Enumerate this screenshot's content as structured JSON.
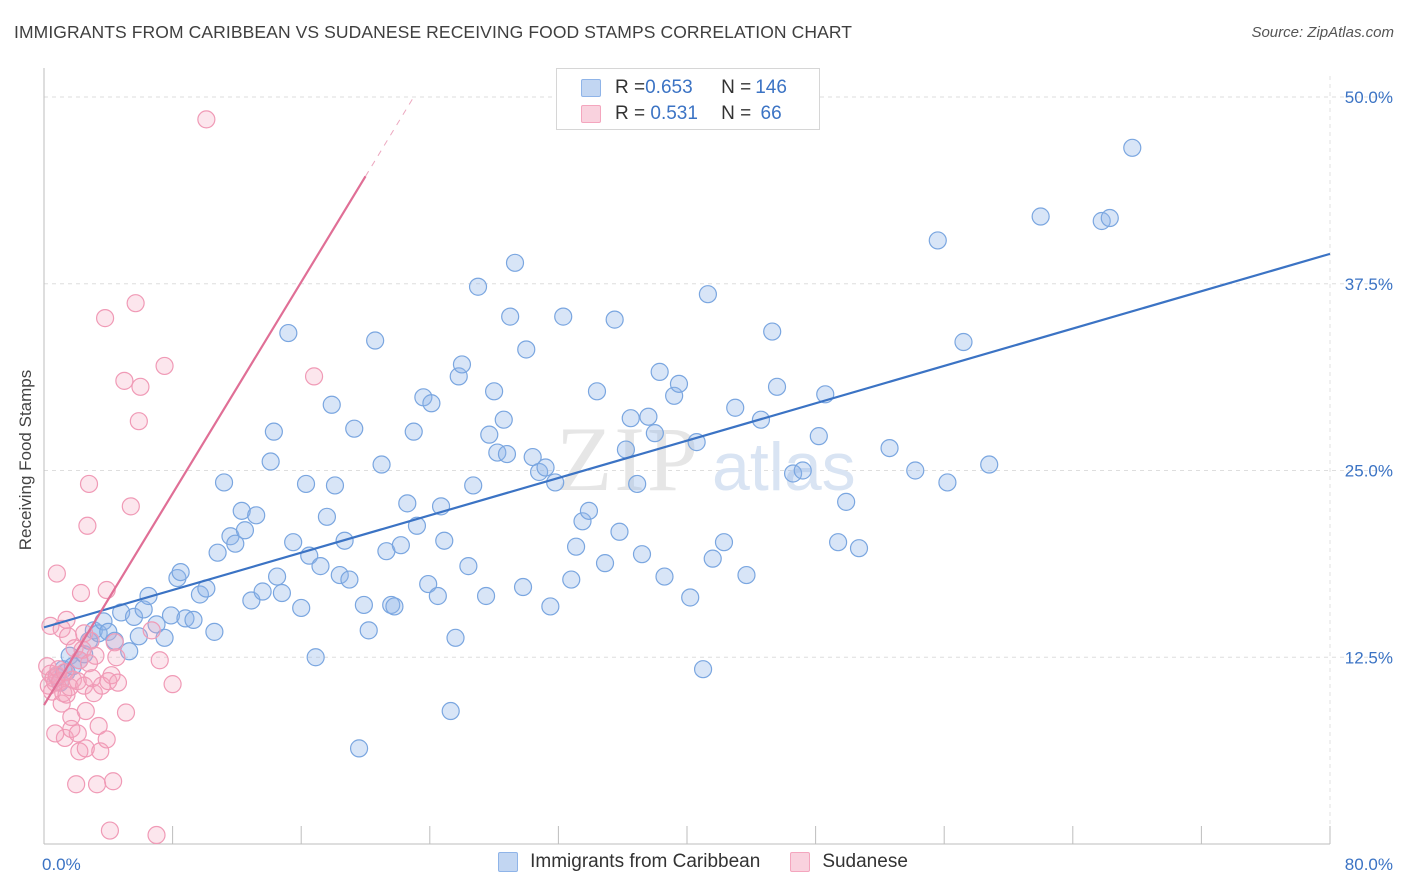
{
  "title": "IMMIGRANTS FROM CARIBBEAN VS SUDANESE RECEIVING FOOD STAMPS CORRELATION CHART",
  "source": "Source: ZipAtlas.com",
  "watermark": {
    "zip": "ZIP",
    "atlas": "atlas"
  },
  "legend": {
    "rows": [
      {
        "r_label": "R = ",
        "r_value": "0.653",
        "n_label": "N = ",
        "n_value": "146",
        "color": "#8fb4e8"
      },
      {
        "r_label": "R = ",
        "r_value": " 0.531",
        "n_label": "N = ",
        "n_value": " 66",
        "color": "#f4a6be"
      }
    ]
  },
  "bottom_legend": [
    {
      "label": "Immigrants from Caribbean",
      "color": "#8fb4e8"
    },
    {
      "label": "Sudanese",
      "color": "#f4a6be"
    }
  ],
  "chart_data": {
    "type": "scatter",
    "title": "IMMIGRANTS FROM CARIBBEAN VS SUDANESE RECEIVING FOOD STAMPS CORRELATION CHART",
    "xlabel": "",
    "ylabel": "Receiving Food Stamps",
    "xlim": [
      0,
      80
    ],
    "ylim": [
      0,
      50
    ],
    "x_tick_labels": [
      {
        "value": 0,
        "label": "0.0%"
      },
      {
        "value": 80,
        "label": "80.0%"
      }
    ],
    "y_tick_labels": [
      {
        "value": 12.5,
        "label": "12.5%"
      },
      {
        "value": 25,
        "label": "25.0%"
      },
      {
        "value": 37.5,
        "label": "37.5%"
      },
      {
        "value": 50,
        "label": "50.0%"
      }
    ],
    "grid": true,
    "legend_position": "top-center",
    "series": [
      {
        "name": "Immigrants from Caribbean",
        "color": "#8fb4e8",
        "line_color": "#3b73c4",
        "trend": {
          "x": [
            0,
            80
          ],
          "y": [
            14.5,
            39.5
          ]
        },
        "points": [
          [
            0.8,
            11.2
          ],
          [
            1.0,
            10.8
          ],
          [
            1.2,
            11.7
          ],
          [
            1.4,
            11.5
          ],
          [
            1.6,
            12.6
          ],
          [
            1.8,
            11.9
          ],
          [
            2.2,
            12.3
          ],
          [
            2.5,
            12.7
          ],
          [
            2.8,
            13.6
          ],
          [
            3.1,
            14.3
          ],
          [
            3.4,
            14.1
          ],
          [
            3.7,
            14.9
          ],
          [
            4.0,
            14.2
          ],
          [
            4.4,
            13.6
          ],
          [
            4.8,
            15.5
          ],
          [
            5.3,
            12.9
          ],
          [
            5.6,
            15.2
          ],
          [
            5.9,
            13.9
          ],
          [
            6.2,
            15.7
          ],
          [
            6.5,
            16.6
          ],
          [
            7.0,
            14.7
          ],
          [
            7.5,
            13.8
          ],
          [
            7.9,
            15.3
          ],
          [
            8.3,
            17.8
          ],
          [
            8.5,
            18.2
          ],
          [
            8.8,
            15.1
          ],
          [
            9.3,
            15.0
          ],
          [
            9.7,
            16.7
          ],
          [
            10.1,
            17.1
          ],
          [
            10.6,
            14.2
          ],
          [
            10.8,
            19.5
          ],
          [
            11.2,
            24.2
          ],
          [
            11.6,
            20.6
          ],
          [
            11.9,
            20.1
          ],
          [
            12.3,
            22.3
          ],
          [
            12.5,
            21.0
          ],
          [
            12.9,
            16.3
          ],
          [
            13.2,
            22.0
          ],
          [
            13.6,
            16.9
          ],
          [
            14.1,
            25.6
          ],
          [
            14.3,
            27.6
          ],
          [
            14.5,
            17.9
          ],
          [
            14.8,
            16.8
          ],
          [
            15.2,
            34.2
          ],
          [
            15.5,
            20.2
          ],
          [
            16.0,
            15.8
          ],
          [
            16.3,
            24.1
          ],
          [
            16.5,
            19.3
          ],
          [
            16.9,
            12.5
          ],
          [
            17.2,
            18.6
          ],
          [
            17.6,
            21.9
          ],
          [
            17.9,
            29.4
          ],
          [
            18.1,
            24.0
          ],
          [
            18.4,
            18.0
          ],
          [
            18.7,
            20.3
          ],
          [
            19.0,
            17.7
          ],
          [
            19.3,
            27.8
          ],
          [
            19.6,
            6.4
          ],
          [
            19.9,
            16.0
          ],
          [
            20.2,
            14.3
          ],
          [
            20.6,
            33.7
          ],
          [
            21.0,
            25.4
          ],
          [
            21.3,
            19.6
          ],
          [
            21.6,
            16.0
          ],
          [
            21.8,
            15.9
          ],
          [
            22.2,
            20.0
          ],
          [
            22.6,
            22.8
          ],
          [
            23.0,
            27.6
          ],
          [
            23.2,
            21.3
          ],
          [
            23.6,
            29.9
          ],
          [
            23.9,
            17.4
          ],
          [
            24.1,
            29.5
          ],
          [
            24.5,
            16.6
          ],
          [
            24.7,
            22.6
          ],
          [
            24.9,
            20.3
          ],
          [
            25.3,
            8.9
          ],
          [
            25.6,
            13.8
          ],
          [
            25.8,
            31.3
          ],
          [
            26.0,
            32.1
          ],
          [
            26.4,
            18.6
          ],
          [
            26.7,
            24.0
          ],
          [
            27.0,
            37.3
          ],
          [
            27.5,
            16.6
          ],
          [
            27.7,
            27.4
          ],
          [
            28.0,
            30.3
          ],
          [
            28.2,
            26.2
          ],
          [
            28.6,
            28.4
          ],
          [
            28.8,
            26.1
          ],
          [
            29.0,
            35.3
          ],
          [
            29.3,
            38.9
          ],
          [
            29.8,
            17.2
          ],
          [
            30.0,
            33.1
          ],
          [
            30.4,
            25.9
          ],
          [
            30.8,
            24.9
          ],
          [
            31.2,
            25.2
          ],
          [
            31.5,
            15.9
          ],
          [
            31.8,
            24.2
          ],
          [
            32.3,
            35.3
          ],
          [
            32.8,
            17.7
          ],
          [
            33.1,
            19.9
          ],
          [
            33.5,
            21.6
          ],
          [
            33.9,
            22.3
          ],
          [
            34.4,
            30.3
          ],
          [
            34.9,
            18.8
          ],
          [
            35.5,
            35.1
          ],
          [
            35.8,
            20.9
          ],
          [
            36.2,
            26.4
          ],
          [
            36.5,
            28.5
          ],
          [
            36.9,
            24.1
          ],
          [
            37.2,
            19.4
          ],
          [
            37.6,
            28.6
          ],
          [
            38.0,
            27.5
          ],
          [
            38.3,
            31.6
          ],
          [
            38.6,
            17.9
          ],
          [
            39.2,
            30.0
          ],
          [
            39.5,
            30.8
          ],
          [
            40.2,
            16.5
          ],
          [
            40.6,
            26.9
          ],
          [
            41.0,
            11.7
          ],
          [
            41.3,
            36.8
          ],
          [
            41.6,
            19.1
          ],
          [
            42.3,
            20.2
          ],
          [
            43.0,
            29.2
          ],
          [
            43.7,
            18.0
          ],
          [
            44.6,
            28.4
          ],
          [
            45.3,
            34.3
          ],
          [
            45.6,
            30.6
          ],
          [
            46.6,
            24.8
          ],
          [
            47.2,
            25.0
          ],
          [
            48.2,
            27.3
          ],
          [
            48.6,
            30.1
          ],
          [
            49.4,
            20.2
          ],
          [
            49.9,
            22.9
          ],
          [
            50.7,
            19.8
          ],
          [
            52.6,
            26.5
          ],
          [
            54.2,
            25.0
          ],
          [
            55.6,
            40.4
          ],
          [
            56.2,
            24.2
          ],
          [
            57.2,
            33.6
          ],
          [
            58.8,
            25.4
          ],
          [
            62.0,
            42.0
          ],
          [
            65.8,
            41.7
          ],
          [
            66.3,
            41.9
          ],
          [
            67.7,
            46.6
          ]
        ]
      },
      {
        "name": "Sudanese",
        "color": "#f4a6be",
        "line_color": "#e06f96",
        "trend": {
          "x": [
            0,
            23
          ],
          "y": [
            9.3,
            50
          ]
        },
        "trend_solid_until_x": 20,
        "points": [
          [
            0.2,
            11.9
          ],
          [
            0.3,
            10.6
          ],
          [
            0.4,
            11.4
          ],
          [
            0.4,
            14.6
          ],
          [
            0.5,
            10.2
          ],
          [
            0.6,
            11.1
          ],
          [
            0.7,
            10.8
          ],
          [
            0.7,
            7.4
          ],
          [
            0.8,
            18.1
          ],
          [
            0.8,
            11.3
          ],
          [
            0.9,
            11.7
          ],
          [
            1.0,
            10.9
          ],
          [
            1.1,
            14.4
          ],
          [
            1.1,
            9.4
          ],
          [
            1.2,
            10.1
          ],
          [
            1.3,
            11.5
          ],
          [
            1.3,
            7.1
          ],
          [
            1.4,
            15.0
          ],
          [
            1.4,
            10.0
          ],
          [
            1.5,
            13.9
          ],
          [
            1.6,
            10.5
          ],
          [
            1.7,
            8.5
          ],
          [
            1.7,
            7.7
          ],
          [
            1.8,
            11.0
          ],
          [
            1.9,
            13.1
          ],
          [
            2.0,
            4.0
          ],
          [
            2.1,
            7.4
          ],
          [
            2.1,
            10.9
          ],
          [
            2.2,
            12.3
          ],
          [
            2.2,
            6.2
          ],
          [
            2.3,
            16.8
          ],
          [
            2.4,
            13.0
          ],
          [
            2.5,
            10.6
          ],
          [
            2.5,
            14.1
          ],
          [
            2.6,
            8.9
          ],
          [
            2.6,
            6.4
          ],
          [
            2.7,
            21.3
          ],
          [
            2.8,
            12.1
          ],
          [
            2.8,
            24.1
          ],
          [
            2.9,
            13.6
          ],
          [
            3.0,
            11.1
          ],
          [
            3.1,
            10.1
          ],
          [
            3.2,
            12.6
          ],
          [
            3.3,
            4.0
          ],
          [
            3.4,
            7.9
          ],
          [
            3.5,
            6.2
          ],
          [
            3.6,
            10.6
          ],
          [
            3.8,
            35.2
          ],
          [
            3.9,
            17.0
          ],
          [
            3.9,
            7.0
          ],
          [
            4.0,
            10.9
          ],
          [
            4.1,
            0.9
          ],
          [
            4.2,
            11.3
          ],
          [
            4.3,
            4.2
          ],
          [
            4.4,
            13.5
          ],
          [
            4.5,
            12.5
          ],
          [
            4.6,
            10.8
          ],
          [
            5.0,
            31.0
          ],
          [
            5.1,
            8.8
          ],
          [
            5.4,
            22.6
          ],
          [
            5.7,
            36.2
          ],
          [
            5.9,
            28.3
          ],
          [
            6.0,
            30.6
          ],
          [
            6.7,
            14.3
          ],
          [
            7.0,
            0.6
          ],
          [
            7.2,
            12.3
          ],
          [
            7.5,
            32.0
          ],
          [
            8.0,
            10.7
          ],
          [
            10.1,
            48.5
          ],
          [
            16.8,
            31.3
          ]
        ]
      }
    ]
  }
}
